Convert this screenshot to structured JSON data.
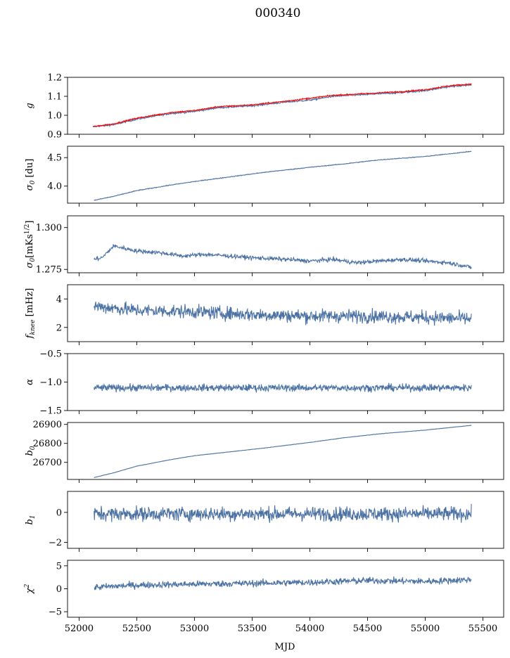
{
  "figure": {
    "title": "000340",
    "xlabel": "MJD"
  },
  "colors": {
    "series": "#4c72a4",
    "highlight": "#ff0000",
    "axes": "#000000",
    "background": "#ffffff"
  },
  "chart_data": [
    {
      "type": "line",
      "ylabel": "g",
      "ylim": [
        0.9,
        1.2
      ],
      "yticks": [
        "0.9",
        "1.0",
        "1.1",
        "1.2"
      ],
      "grid": false,
      "series": [
        {
          "color": "#4c72a4",
          "x": [
            52120,
            52300,
            52500,
            52800,
            53000,
            53200,
            53500,
            53800,
            54000,
            54200,
            54500,
            54800,
            55000,
            55200,
            55400
          ],
          "values": [
            0.94,
            0.95,
            0.98,
            1.01,
            1.02,
            1.04,
            1.05,
            1.07,
            1.08,
            1.1,
            1.11,
            1.12,
            1.13,
            1.15,
            1.16
          ],
          "noise": 0.004
        },
        {
          "color": "#ff0000",
          "x": [
            52120,
            52300,
            52500,
            52800,
            53000,
            53200,
            53500,
            53800,
            54000,
            54200,
            54500,
            54800,
            55000,
            55200,
            55400
          ],
          "values": [
            0.94,
            0.955,
            0.985,
            1.015,
            1.025,
            1.045,
            1.055,
            1.075,
            1.09,
            1.105,
            1.115,
            1.125,
            1.135,
            1.155,
            1.165
          ],
          "noise": 0.003
        }
      ]
    },
    {
      "type": "line",
      "ylabel": "σ0 [du]",
      "ylim": [
        3.7,
        4.7
      ],
      "yticks": [
        "4.0",
        "4.5"
      ],
      "grid": false,
      "series": [
        {
          "color": "#4c72a4",
          "x": [
            52130,
            52300,
            52500,
            52800,
            53000,
            53300,
            53600,
            54000,
            54300,
            54600,
            55000,
            55400
          ],
          "values": [
            3.75,
            3.82,
            3.92,
            4.02,
            4.08,
            4.16,
            4.24,
            4.33,
            4.39,
            4.46,
            4.52,
            4.61
          ],
          "noise": 0.006
        }
      ]
    },
    {
      "type": "line",
      "ylabel": "σ0[mKs^1/2]",
      "ylim": [
        1.273,
        1.307
      ],
      "yticks": [
        "1.275",
        "1.300"
      ],
      "grid": false,
      "series": [
        {
          "color": "#4c72a4",
          "x": [
            52130,
            52200,
            52300,
            52500,
            52700,
            52900,
            53100,
            53300,
            53500,
            53800,
            54000,
            54200,
            54400,
            54600,
            54800,
            55000,
            55200,
            55350,
            55400
          ],
          "values": [
            1.281,
            1.282,
            1.289,
            1.286,
            1.285,
            1.283,
            1.284,
            1.283,
            1.282,
            1.281,
            1.28,
            1.281,
            1.279,
            1.28,
            1.281,
            1.28,
            1.279,
            1.277,
            1.276
          ],
          "noise": 0.0012
        }
      ]
    },
    {
      "type": "line",
      "ylabel": "f_knee [mHz]",
      "ylim": [
        1.0,
        5.0
      ],
      "yticks": [
        "2",
        "4"
      ],
      "grid": false,
      "series": [
        {
          "color": "#4c72a4",
          "x": [
            52130,
            52500,
            53000,
            53500,
            54000,
            54500,
            55000,
            55400
          ],
          "values": [
            3.5,
            3.2,
            3.1,
            2.9,
            2.8,
            2.8,
            2.7,
            2.6
          ],
          "noise": 0.45
        }
      ]
    },
    {
      "type": "line",
      "ylabel": "α",
      "ylim": [
        -1.5,
        -0.5
      ],
      "yticks": [
        "−1.5",
        "−1.0",
        "−0.5"
      ],
      "grid": false,
      "series": [
        {
          "color": "#4c72a4",
          "x": [
            52130,
            55400
          ],
          "values": [
            -1.1,
            -1.1
          ],
          "noise": 0.06
        }
      ]
    },
    {
      "type": "line",
      "ylabel": "b0",
      "ylim": [
        26610,
        26910
      ],
      "yticks": [
        "26700",
        "26800",
        "26900"
      ],
      "grid": false,
      "series": [
        {
          "color": "#4c72a4",
          "x": [
            52130,
            52300,
            52500,
            52800,
            53000,
            53300,
            53600,
            54000,
            54300,
            54600,
            55000,
            55400
          ],
          "values": [
            26620,
            26645,
            26680,
            26715,
            26735,
            26755,
            26775,
            26805,
            26830,
            26850,
            26870,
            26895
          ],
          "noise": 0.8
        }
      ]
    },
    {
      "type": "line",
      "ylabel": "b1",
      "ylim": [
        -2.4,
        1.4
      ],
      "yticks": [
        "−2",
        "0"
      ],
      "grid": false,
      "series": [
        {
          "color": "#4c72a4",
          "x": [
            52130,
            55400
          ],
          "values": [
            -0.1,
            -0.1
          ],
          "noise": 0.45
        }
      ]
    },
    {
      "type": "line",
      "ylabel": "χ²",
      "ylim": [
        -6.2,
        6.2
      ],
      "yticks": [
        "−5",
        "0",
        "5"
      ],
      "grid": false,
      "series": [
        {
          "color": "#4c72a4",
          "x": [
            52130,
            52500,
            53000,
            53500,
            54000,
            54500,
            55000,
            55400
          ],
          "values": [
            0.3,
            0.8,
            1.0,
            1.2,
            1.4,
            1.8,
            1.6,
            2.0
          ],
          "noise": 0.7
        }
      ]
    }
  ],
  "x_axis": {
    "xlim": [
      51900,
      55680
    ],
    "ticks": [
      "52000",
      "52500",
      "53000",
      "53500",
      "54000",
      "54500",
      "55000",
      "55500"
    ]
  }
}
